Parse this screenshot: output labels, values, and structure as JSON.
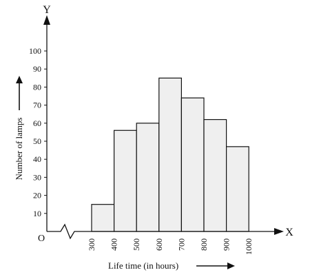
{
  "chart_data": {
    "type": "bar",
    "subtype": "histogram",
    "bins": [
      {
        "from": 300,
        "to": 400,
        "value": 15
      },
      {
        "from": 400,
        "to": 500,
        "value": 56
      },
      {
        "from": 500,
        "to": 600,
        "value": 60
      },
      {
        "from": 600,
        "to": 700,
        "value": 85
      },
      {
        "from": 700,
        "to": 800,
        "value": 74
      },
      {
        "from": 800,
        "to": 900,
        "value": 62
      },
      {
        "from": 900,
        "to": 1000,
        "value": 47
      }
    ],
    "x_ticks": [
      "300",
      "400",
      "500",
      "600",
      "700",
      "800",
      "900",
      "1000"
    ],
    "y_ticks": [
      "10",
      "20",
      "30",
      "40",
      "50",
      "60",
      "70",
      "80",
      "90",
      "100"
    ],
    "xlabel": "Life time (in hours)",
    "ylabel": "Number of lamps",
    "x_axis_letter": "X",
    "y_axis_letter": "Y",
    "origin_label": "O",
    "ylim": [
      0,
      100
    ],
    "xlim": [
      300,
      1000
    ],
    "x_axis_break": true,
    "grid": false,
    "bar_fill": "#efefef",
    "bar_stroke": "#111111"
  }
}
